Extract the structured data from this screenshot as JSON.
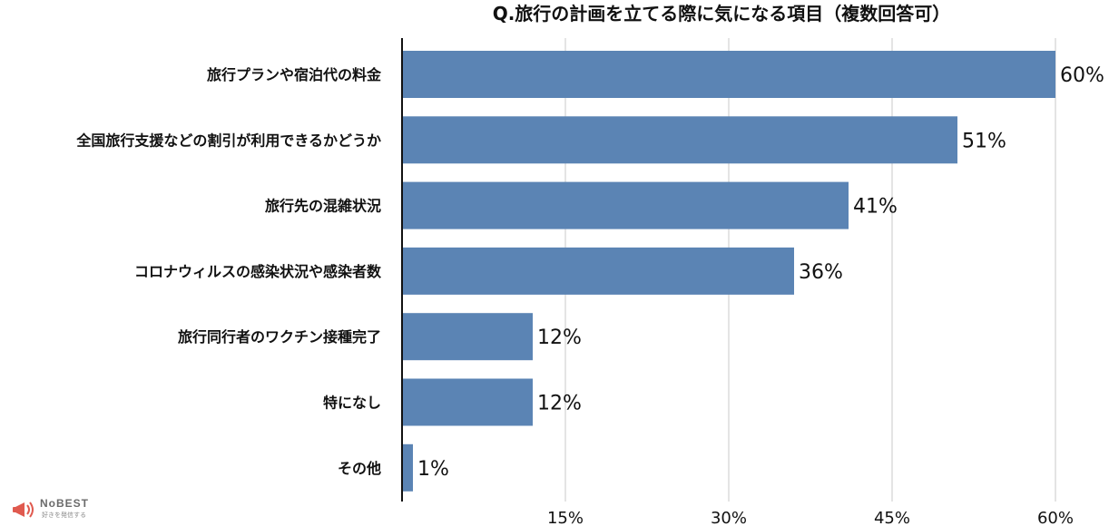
{
  "chart_data": {
    "type": "bar",
    "orientation": "horizontal",
    "title": "Q.旅行の計画を立てる際に気になる項目（複数回答可）",
    "categories": [
      "旅行プランや宿泊代の料金",
      "全国旅行支援などの割引が利用できるかどうか",
      "旅行先の混雑状況",
      "コロナウィルスの感染状況や感染者数",
      "旅行同行者のワクチン接種完了",
      "特になし",
      "その他"
    ],
    "values": [
      60,
      51,
      41,
      36,
      12,
      12,
      1
    ],
    "value_labels": [
      "60%",
      "51%",
      "41%",
      "36%",
      "12%",
      "12%",
      "1%"
    ],
    "unit": "%",
    "xlim": [
      0,
      60
    ],
    "xticks": [
      15,
      30,
      45,
      60
    ],
    "xtick_labels": [
      "15%",
      "30%",
      "45%",
      "60%"
    ],
    "grid": true,
    "colors": {
      "bar": "#5b84b4",
      "grid": "#c8c8c8",
      "axis": "#111111",
      "text": "#111111"
    }
  },
  "logo": {
    "brand": "NoBEST",
    "tagline": "好きを発信する",
    "icon": "megaphone-icon",
    "colors": {
      "primary": "#e05a4f",
      "text": "#6b6b6b"
    }
  }
}
